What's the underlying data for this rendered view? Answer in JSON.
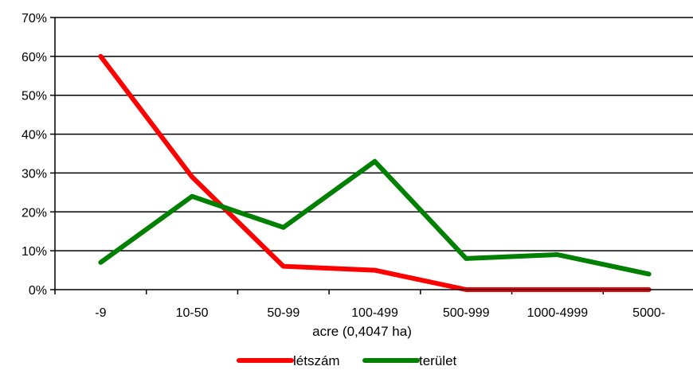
{
  "chart_data": {
    "type": "line",
    "categories": [
      "-9",
      "10-50",
      "50-99",
      "100-499",
      "500-999",
      "1000-4999",
      "5000-"
    ],
    "series": [
      {
        "name": "létszám",
        "color": "#ff0000",
        "values": [
          60,
          29,
          6,
          5,
          0,
          0,
          0
        ]
      },
      {
        "name": "terület",
        "color": "#008000",
        "values": [
          7,
          24,
          16,
          33,
          8,
          9,
          4
        ]
      }
    ],
    "xlabel": "acre (0,4047 ha)",
    "ylabel": "",
    "ylim": [
      0,
      70
    ],
    "ytick_step": 10,
    "ytick_format": "percent",
    "grid": "horizontal",
    "legend_position": "bottom"
  }
}
